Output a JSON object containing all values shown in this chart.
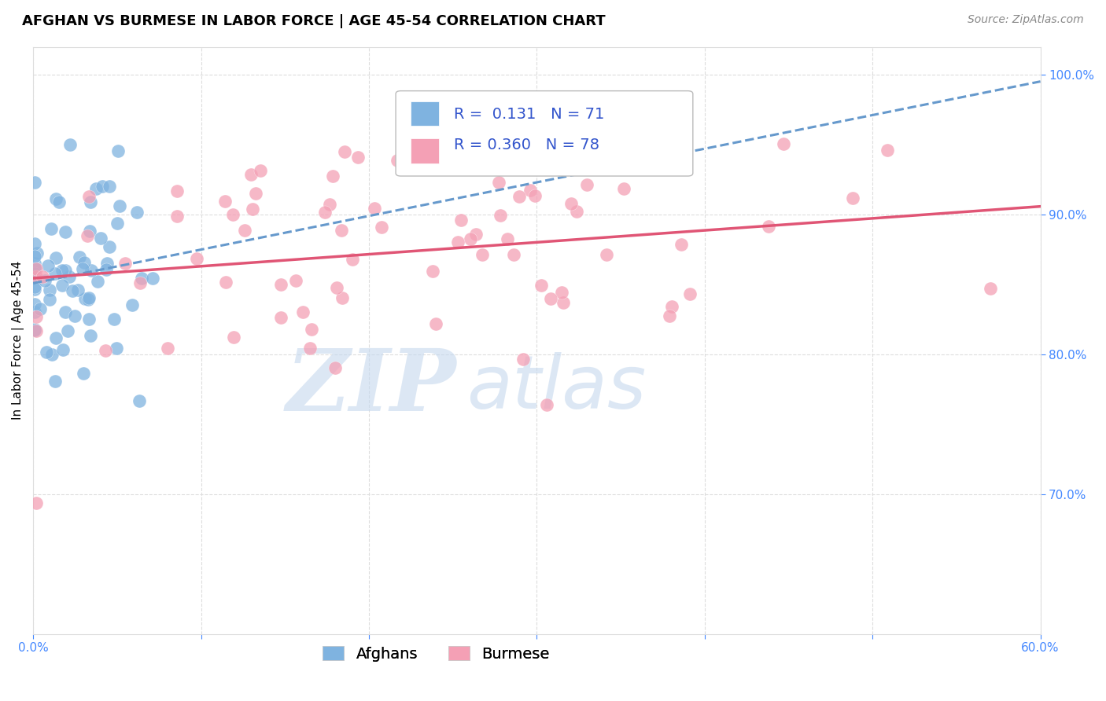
{
  "title": "AFGHAN VS BURMESE IN LABOR FORCE | AGE 45-54 CORRELATION CHART",
  "source": "Source: ZipAtlas.com",
  "ylabel": "In Labor Force | Age 45-54",
  "xlim": [
    0.0,
    0.6
  ],
  "ylim": [
    0.6,
    1.02
  ],
  "yticks": [
    0.7,
    0.8,
    0.9,
    1.0
  ],
  "ytick_labels": [
    "70.0%",
    "80.0%",
    "90.0%",
    "100.0%"
  ],
  "xticks": [
    0.0,
    0.1,
    0.2,
    0.3,
    0.4,
    0.5,
    0.6
  ],
  "xtick_labels": [
    "0.0%",
    "",
    "",
    "",
    "",
    "",
    "60.0%"
  ],
  "afghan_color": "#7fb3e0",
  "burmese_color": "#f4a0b5",
  "trend_afghan_color": "#6699cc",
  "trend_burmese_color": "#e05575",
  "legend_r_afghan": "0.131",
  "legend_n_afghan": "71",
  "legend_r_burmese": "0.360",
  "legend_n_burmese": "78",
  "watermark_zip": "ZIP",
  "watermark_atlas": "atlas",
  "title_fontsize": 13,
  "axis_tick_fontsize": 11,
  "label_fontsize": 11,
  "legend_fontsize": 14,
  "source_fontsize": 10,
  "background_color": "#ffffff",
  "grid_color": "#dddddd",
  "tick_color": "#4488ff",
  "watermark_color": "#c5d8ee",
  "watermark_alpha": 0.6,
  "afghan_seed": 42,
  "burmese_seed": 99
}
